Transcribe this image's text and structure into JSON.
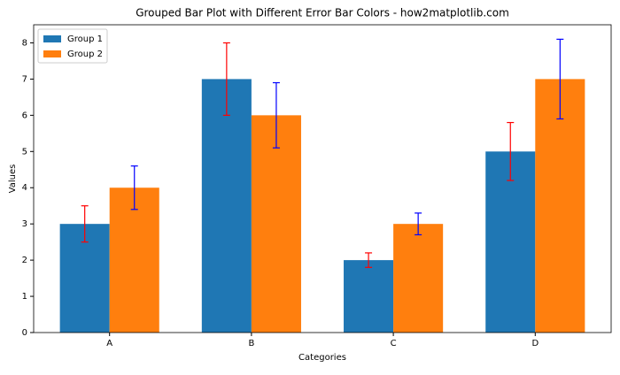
{
  "chart_data": {
    "type": "bar",
    "title": "Grouped Bar Plot with Different Error Bar Colors - how2matplotlib.com",
    "xlabel": "Categories",
    "ylabel": "Values",
    "categories": [
      "A",
      "B",
      "C",
      "D"
    ],
    "series": [
      {
        "name": "Group 1",
        "color": "#1f77b4",
        "error_color": "red",
        "values": [
          3,
          7,
          2,
          5
        ],
        "errors": [
          0.5,
          1,
          0.2,
          0.8
        ]
      },
      {
        "name": "Group 2",
        "color": "#ff7f0e",
        "error_color": "blue",
        "values": [
          4,
          6,
          3,
          7
        ],
        "errors": [
          0.6,
          0.9,
          0.3,
          1.1
        ]
      }
    ],
    "ylim": [
      0,
      8.5
    ],
    "yticks": [
      0,
      1,
      2,
      3,
      4,
      5,
      6,
      7,
      8
    ],
    "legend": "upper left"
  }
}
